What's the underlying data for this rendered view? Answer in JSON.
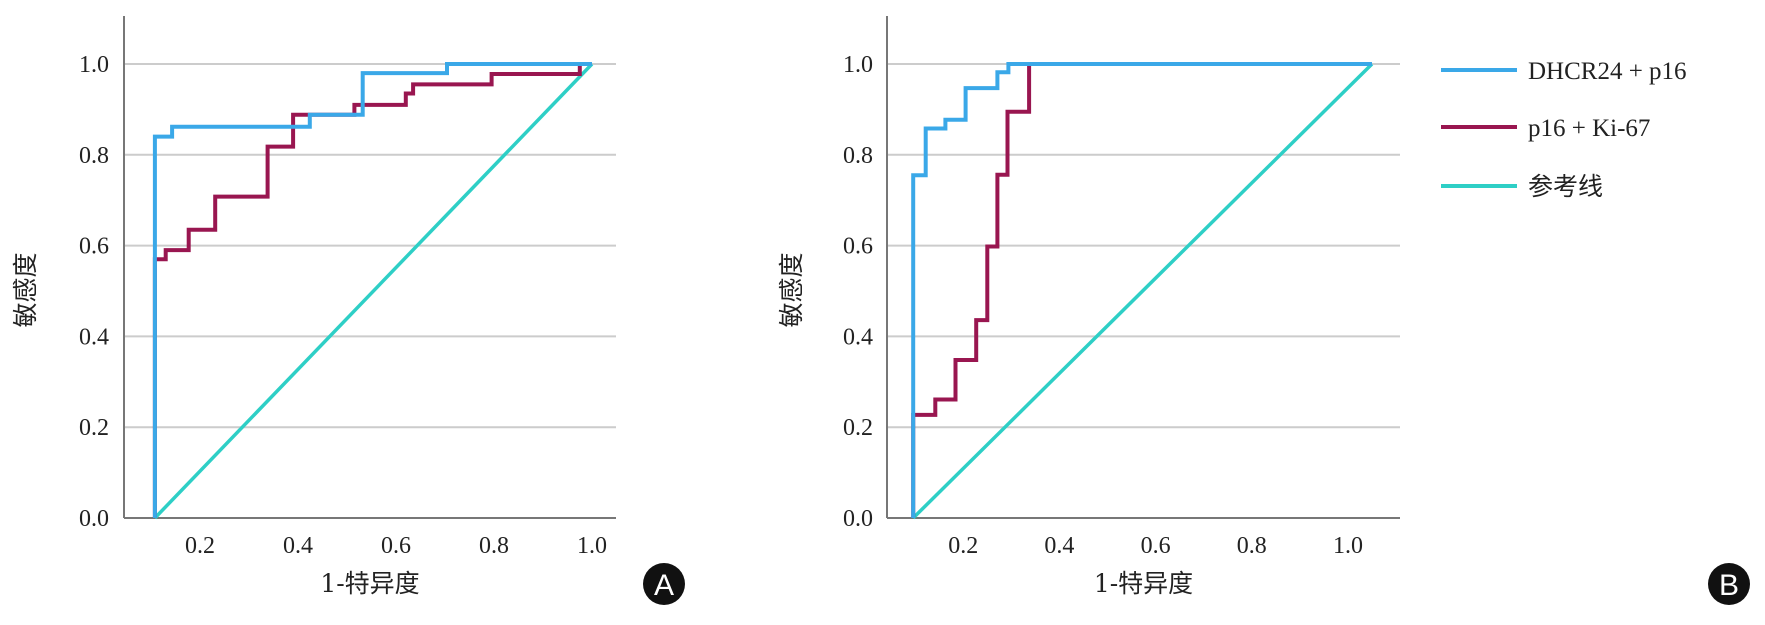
{
  "colors": {
    "dhcr24_p16": "#3aa8e8",
    "p16_ki67": "#991650",
    "reference": "#2ecfc6",
    "grid": "#cccccc",
    "axis": "#777777"
  },
  "legend": {
    "items": [
      {
        "label": "DHCR24 + p16",
        "series": "dhcr24_p16"
      },
      {
        "label": "p16 + Ki-67",
        "series": "p16_ki67"
      },
      {
        "label": "参考线",
        "series": "reference"
      }
    ]
  },
  "chart_data": [
    {
      "panel": "A",
      "type": "line",
      "xlabel": "1-特异度",
      "ylabel": "敏感度",
      "xlim": [
        0.045,
        1.05
      ],
      "ylim": [
        0,
        1.1
      ],
      "xticks": [
        "0.2",
        "0.4",
        "0.6",
        "0.8",
        "1.0"
      ],
      "yticks": [
        "0.0",
        "0.2",
        "0.4",
        "0.6",
        "0.8",
        "1.0"
      ],
      "grid": "horizontal",
      "series": [
        {
          "name": "DHCR24 + p16",
          "key": "dhcr24_p16",
          "points": [
            [
              0.108,
              0
            ],
            [
              0.108,
              0.84
            ],
            [
              0.143,
              0.84
            ],
            [
              0.143,
              0.862
            ],
            [
              0.424,
              0.862
            ],
            [
              0.424,
              0.888
            ],
            [
              0.532,
              0.888
            ],
            [
              0.532,
              0.98
            ],
            [
              0.704,
              0.98
            ],
            [
              0.704,
              1.0
            ],
            [
              1.0,
              1.0
            ]
          ]
        },
        {
          "name": "p16 + Ki-67",
          "key": "p16_ki67",
          "points": [
            [
              0.108,
              0
            ],
            [
              0.108,
              0.57
            ],
            [
              0.13,
              0.57
            ],
            [
              0.13,
              0.59
            ],
            [
              0.177,
              0.59
            ],
            [
              0.177,
              0.635
            ],
            [
              0.231,
              0.635
            ],
            [
              0.231,
              0.708
            ],
            [
              0.338,
              0.708
            ],
            [
              0.338,
              0.818
            ],
            [
              0.39,
              0.818
            ],
            [
              0.39,
              0.888
            ],
            [
              0.515,
              0.888
            ],
            [
              0.515,
              0.91
            ],
            [
              0.62,
              0.91
            ],
            [
              0.62,
              0.935
            ],
            [
              0.635,
              0.935
            ],
            [
              0.635,
              0.955
            ],
            [
              0.795,
              0.955
            ],
            [
              0.795,
              0.978
            ],
            [
              0.975,
              0.978
            ],
            [
              0.975,
              1.0
            ],
            [
              1.0,
              1.0
            ]
          ]
        },
        {
          "name": "参考线",
          "key": "reference",
          "points": [
            [
              0.108,
              0
            ],
            [
              1.0,
              1.0
            ]
          ]
        }
      ]
    },
    {
      "panel": "B",
      "type": "line",
      "xlabel": "1-特异度",
      "ylabel": "敏感度",
      "xlim": [
        0.042,
        1.11
      ],
      "ylim": [
        0,
        1.1
      ],
      "xticks": [
        "0.2",
        "0.4",
        "0.6",
        "0.8",
        "1.0"
      ],
      "yticks": [
        "0.0",
        "0.2",
        "0.4",
        "0.6",
        "0.8",
        "1.0"
      ],
      "grid": "horizontal",
      "legend_position": "right",
      "series": [
        {
          "name": "DHCR24 + p16",
          "key": "dhcr24_p16",
          "points": [
            [
              0.096,
              0
            ],
            [
              0.096,
              0.755
            ],
            [
              0.122,
              0.755
            ],
            [
              0.122,
              0.858
            ],
            [
              0.163,
              0.858
            ],
            [
              0.163,
              0.877
            ],
            [
              0.205,
              0.877
            ],
            [
              0.205,
              0.947
            ],
            [
              0.271,
              0.947
            ],
            [
              0.271,
              0.982
            ],
            [
              0.294,
              0.982
            ],
            [
              0.294,
              1.0
            ],
            [
              1.05,
              1.0
            ]
          ]
        },
        {
          "name": "p16 + Ki-67",
          "key": "p16_ki67",
          "points": [
            [
              0.096,
              0
            ],
            [
              0.096,
              0.227
            ],
            [
              0.142,
              0.227
            ],
            [
              0.142,
              0.261
            ],
            [
              0.184,
              0.261
            ],
            [
              0.184,
              0.348
            ],
            [
              0.227,
              0.348
            ],
            [
              0.227,
              0.436
            ],
            [
              0.25,
              0.436
            ],
            [
              0.25,
              0.598
            ],
            [
              0.271,
              0.598
            ],
            [
              0.271,
              0.756
            ],
            [
              0.292,
              0.756
            ],
            [
              0.292,
              0.895
            ],
            [
              0.337,
              0.895
            ],
            [
              0.337,
              1.0
            ],
            [
              1.05,
              1.0
            ]
          ]
        },
        {
          "name": "参考线",
          "key": "reference",
          "points": [
            [
              0.096,
              0
            ],
            [
              1.05,
              1.0
            ]
          ]
        }
      ]
    }
  ]
}
